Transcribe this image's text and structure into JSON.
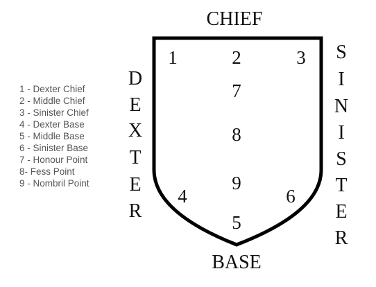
{
  "labels": {
    "top": "CHIEF",
    "bottom": "BASE",
    "left": "DEXTER",
    "right": "SINISTER"
  },
  "points": {
    "p1": "1",
    "p2": "2",
    "p3": "3",
    "p4": "4",
    "p5": "5",
    "p6": "6",
    "p7": "7",
    "p8": "8",
    "p9": "9"
  },
  "legend": [
    "1 - Dexter Chief",
    "2 - Middle Chief",
    "3 - Sinister Chief",
    "4 - Dexter Base",
    "5 - Middle Base",
    "6 - Sinister Base",
    "7 - Honour Point",
    "8- Fess Point",
    "9 - Nombril Point"
  ]
}
